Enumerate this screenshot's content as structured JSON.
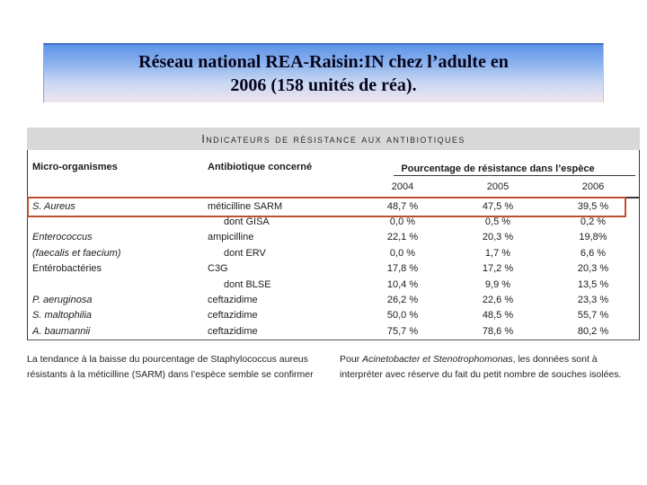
{
  "slide": {
    "title_line1": "Réseau national REA-Raisin:IN chez l’adulte en",
    "title_line2": "2006 (158 unités de réa)."
  },
  "table": {
    "caption": "Indicateurs de résistance aux antibiotiques",
    "columns": {
      "micro": "Micro-organismes",
      "antibiotic": "Antibiotique concerné",
      "pct": "Pourcentage de résistance dans l’espèce"
    },
    "years": [
      "2004",
      "2005",
      "2006"
    ],
    "rows": [
      {
        "org": "S. Aureus",
        "ab": "méticilline SARM",
        "v2004": "48,7 %",
        "v2005": "47,5 %",
        "v2006": "39,5 %",
        "highlight": true
      },
      {
        "org": "",
        "ab": "dont GISA",
        "v2004": "0,0 %",
        "v2005": "0,5 %",
        "v2006": "0,2 %"
      },
      {
        "org": "Enterococcus",
        "ab": "ampicilline",
        "v2004": "22,1 %",
        "v2005": "20,3 %",
        "v2006": "19,8%"
      },
      {
        "org": "(faecalis et faecium)",
        "ab": "dont ERV",
        "v2004": "0,0 %",
        "v2005": "1,7 %",
        "v2006": "6,6 %"
      },
      {
        "org": "Entérobactéries",
        "ab": "C3G",
        "v2004": "17,8 %",
        "v2005": "17,2 %",
        "v2006": "20,3 %"
      },
      {
        "org": "",
        "ab": "dont BLSE",
        "v2004": "10,4 %",
        "v2005": "9,9 %",
        "v2006": "13,5 %"
      },
      {
        "org": "P. aeruginosa",
        "ab": "ceftazidime",
        "v2004": "26,2 %",
        "v2005": "22,6 %",
        "v2006": "23,3 %"
      },
      {
        "org": "S. maltophilia",
        "ab": "ceftazidime",
        "v2004": "50,0 %",
        "v2005": "48,5 %",
        "v2006": "55,7 %"
      },
      {
        "org": "A. baumannii",
        "ab": "ceftazidime",
        "v2004": "75,7 %",
        "v2005": "78,6 %",
        "v2006": "80,2 %"
      }
    ]
  },
  "footer": {
    "left_text": "La tendance à la baisse du pourcentage de Staphylococcus aureus résistants à la méticilline (SARM) dans l’espèce semble se confirmer",
    "left_clipped": ". . · . . · . . · . · . . · . . · . . · . .",
    "right_prefix": "Pour ",
    "right_italic": "Acinetobacter et Stenotrophomonas",
    "right_rest": ", les données sont à interpréter avec réserve du fait du petit nombre de souches isolées."
  },
  "colors": {
    "banner_top": "#5e93e8",
    "banner_bottom": "#efe5ee",
    "caption_bar": "#d8d8d8",
    "highlight_box": "#bd4f32"
  }
}
